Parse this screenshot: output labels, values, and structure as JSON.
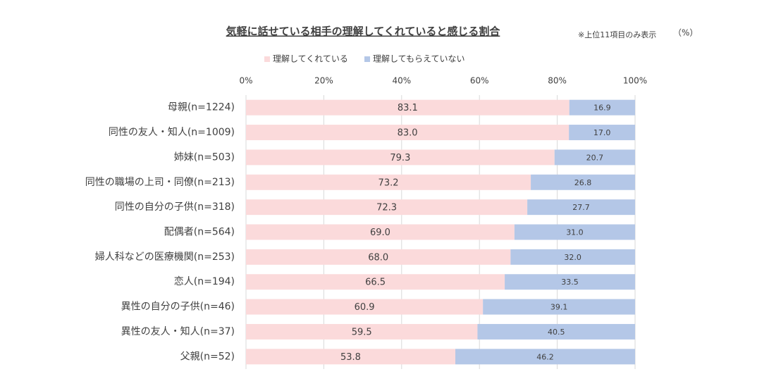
{
  "chart_data": {
    "type": "stacked-bar-horizontal",
    "title": "気軽に話せている相手の理解してくれていると感じる割合",
    "annotations": [
      "※上位11項目のみ表示",
      "（%）"
    ],
    "categories": [
      "母親(n=1224)",
      "同性の友人・知人(n=1009)",
      "姉妹(n=503)",
      "同性の職場の上司・同僚(n=213)",
      "同性の自分の子供(n=318)",
      "配偶者(n=564)",
      "婦人科などの医療機関(n=253)",
      "恋人(n=194)",
      "異性の自分の子供(n=46)",
      "異性の友人・知人(n=37)",
      "父親(n=52)"
    ],
    "series": [
      {
        "name": "理解してくれている",
        "color": "#fbdadb",
        "values": [
          83.1,
          83.0,
          79.3,
          73.2,
          72.3,
          69.0,
          68.0,
          66.5,
          60.9,
          59.5,
          53.8
        ],
        "value_labels": [
          "83.1",
          "83.0",
          "79.3",
          "73.2",
          "72.3",
          "69.0",
          "68.0",
          "66.5",
          "60.9",
          "59.5",
          "53.8"
        ]
      },
      {
        "name": "理解してもらえていない",
        "color": "#b4c7e7",
        "values": [
          16.9,
          17.0,
          20.7,
          26.8,
          27.7,
          31.0,
          32.0,
          33.5,
          39.1,
          40.5,
          46.2
        ],
        "value_labels": [
          "16.9",
          "17.0",
          "20.7",
          "26.8",
          "27.7",
          "31.0",
          "32.0",
          "33.5",
          "39.1",
          "40.5",
          "46.2"
        ]
      }
    ],
    "xlim": [
      0,
      100
    ],
    "xticks": [
      {
        "value": 0,
        "label": "0%"
      },
      {
        "value": 20,
        "label": "20%"
      },
      {
        "value": 40,
        "label": "40%"
      },
      {
        "value": 60,
        "label": "60%"
      },
      {
        "value": 80,
        "label": "80%"
      },
      {
        "value": 100,
        "label": "100%"
      }
    ],
    "grid": true
  }
}
